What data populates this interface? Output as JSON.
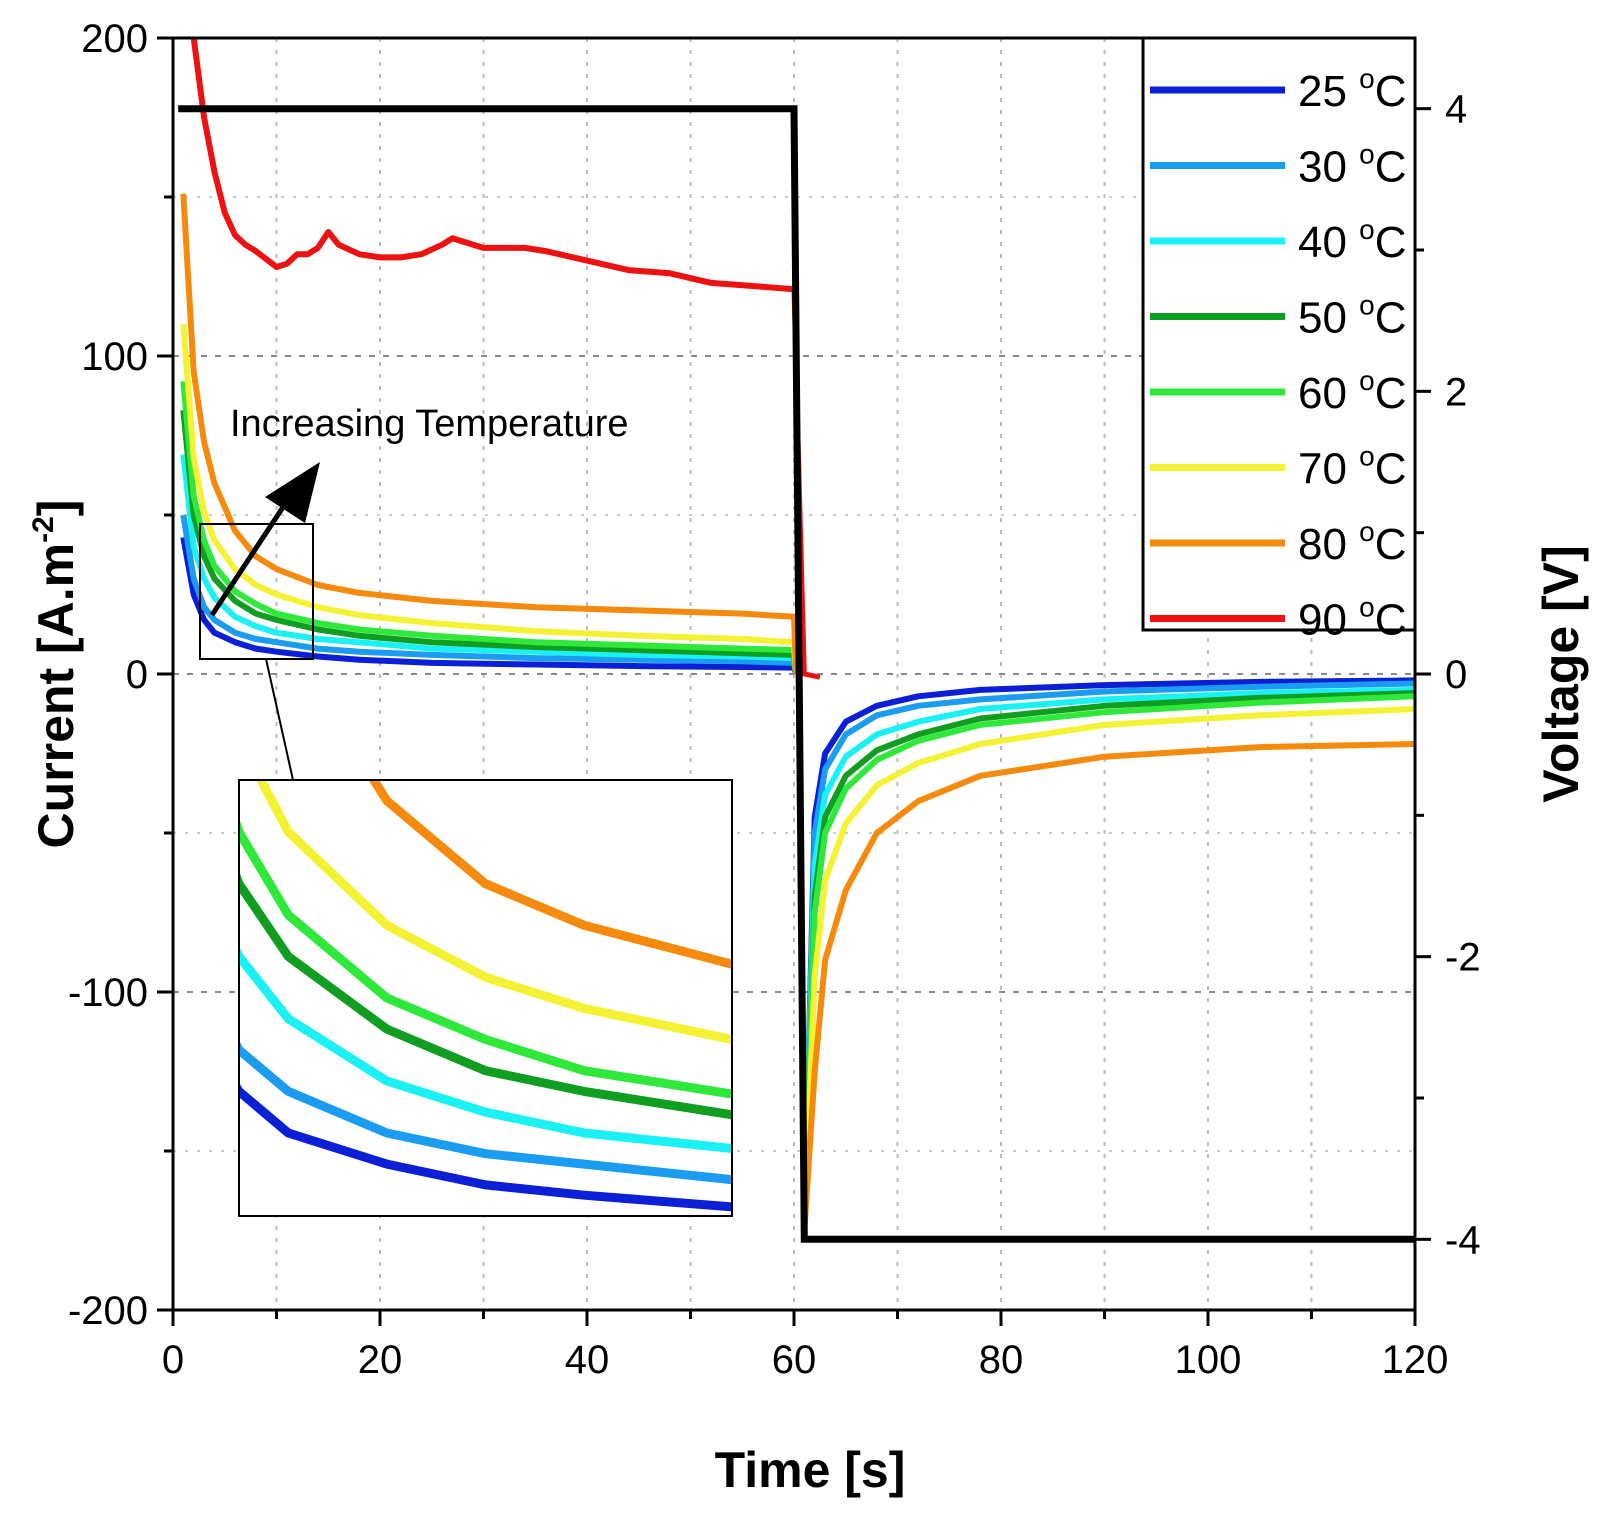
{
  "chart_data": {
    "type": "line",
    "title": "",
    "xlabel": "Time [s]",
    "ylabel": "Current [A.m",
    "ylabel_sup": "-2",
    "ylabel_close": "]",
    "y2label": "Voltage [V]",
    "xlim": [
      0,
      120
    ],
    "ylim": [
      -200,
      200
    ],
    "y2lim": [
      -4.5,
      4.5
    ],
    "x_ticks": [
      "0",
      "20",
      "40",
      "60",
      "80",
      "100",
      "120"
    ],
    "y_ticks": [
      "200",
      "100",
      "0",
      "-100",
      "-200"
    ],
    "y2_ticks": [
      "4",
      "2",
      "0",
      "-2",
      "-4"
    ],
    "grid": true,
    "legend_position": "top-right",
    "annotation": "Increasing Temperature",
    "series": [
      {
        "name": "25 °C",
        "label": "25",
        "unit": "C",
        "deg": "o",
        "color": "#0a1fd6",
        "x": [
          1,
          2,
          3,
          4,
          6,
          8,
          10,
          14,
          18,
          25,
          35,
          45,
          55,
          60
        ],
        "y": [
          43,
          25,
          17,
          13,
          10,
          8,
          7,
          5.5,
          4.5,
          3.5,
          3,
          2.5,
          2.2,
          2
        ]
      },
      {
        "name": "30 °C",
        "label": "30",
        "unit": "C",
        "deg": "o",
        "color": "#1a9cf0",
        "x": [
          1,
          2,
          3,
          4,
          6,
          8,
          10,
          14,
          18,
          25,
          35,
          45,
          55,
          60
        ],
        "y": [
          50,
          30,
          21,
          17,
          13,
          11,
          10,
          8,
          7,
          6,
          5,
          4.5,
          4,
          3.5
        ]
      },
      {
        "name": "40 °C",
        "label": "40",
        "unit": "C",
        "deg": "o",
        "color": "#19f1f5",
        "x": [
          1,
          2,
          3,
          4,
          6,
          8,
          10,
          14,
          18,
          25,
          35,
          45,
          55,
          60
        ],
        "y": [
          69,
          40,
          30,
          24,
          18,
          15,
          13,
          11,
          10,
          8,
          7,
          6,
          5.5,
          5
        ]
      },
      {
        "name": "50 °C",
        "label": "50",
        "unit": "C",
        "deg": "o",
        "color": "#0f9e1f",
        "x": [
          1,
          2,
          3,
          4,
          6,
          8,
          10,
          14,
          18,
          25,
          35,
          45,
          55,
          60
        ],
        "y": [
          83,
          50,
          37,
          30,
          23,
          19,
          17,
          14,
          12,
          10,
          8.5,
          7.5,
          6.5,
          6
        ]
      },
      {
        "name": "60 °C",
        "label": "60",
        "unit": "C",
        "deg": "o",
        "color": "#2ee83a",
        "x": [
          1,
          2,
          3,
          4,
          6,
          8,
          10,
          14,
          18,
          25,
          35,
          45,
          55,
          60
        ],
        "y": [
          92,
          56,
          42,
          34,
          26,
          22,
          19,
          16,
          14,
          12,
          10,
          9,
          8,
          7.5
        ]
      },
      {
        "name": "70 °C",
        "label": "70",
        "unit": "C",
        "deg": "o",
        "color": "#f4f233",
        "x": [
          1,
          2,
          3,
          4,
          6,
          8,
          10,
          14,
          18,
          25,
          35,
          45,
          55,
          60
        ],
        "y": [
          110,
          68,
          51,
          42,
          33,
          28,
          25,
          21,
          18.5,
          16,
          13.5,
          12,
          11,
          10
        ]
      },
      {
        "name": "80 °C",
        "label": "80",
        "unit": "C",
        "deg": "o",
        "color": "#f58a0c",
        "x": [
          1,
          2,
          3,
          4,
          6,
          8,
          10,
          14,
          18,
          25,
          35,
          45,
          55,
          60
        ],
        "y": [
          151,
          95,
          73,
          60,
          45,
          37,
          33,
          28,
          25.5,
          23,
          21,
          20,
          19,
          18
        ]
      },
      {
        "name": "90 °C",
        "label": "90",
        "unit": "C",
        "deg": "o",
        "color": "#ee1111",
        "x": [
          2,
          3,
          4,
          5,
          6,
          7,
          8,
          10,
          11,
          12,
          13,
          14,
          15,
          16,
          18,
          20,
          22,
          24,
          26,
          27,
          28,
          30,
          34,
          36,
          40,
          44,
          48,
          52,
          56,
          60
        ],
        "y": [
          200,
          175,
          158,
          145,
          138,
          135,
          133,
          128,
          129,
          132,
          132,
          134,
          139,
          135,
          132,
          131,
          131,
          132,
          135,
          137,
          136,
          134,
          134,
          133,
          130,
          127,
          126,
          123,
          122,
          121
        ]
      }
    ],
    "discharge_series": [
      {
        "name": "25 °C",
        "color": "#0a1fd6",
        "x": [
          61,
          62,
          63,
          65,
          68,
          72,
          78,
          90,
          105,
          120
        ],
        "y": [
          -175,
          -45,
          -25,
          -15,
          -10,
          -7,
          -5,
          -3.5,
          -2.5,
          -2
        ]
      },
      {
        "name": "30 °C",
        "color": "#1a9cf0",
        "x": [
          61,
          62,
          63,
          65,
          68,
          72,
          78,
          90,
          105,
          120
        ],
        "y": [
          -175,
          -50,
          -30,
          -19,
          -13,
          -10,
          -8,
          -5.5,
          -4,
          -3
        ]
      },
      {
        "name": "40 °C",
        "color": "#19f1f5",
        "x": [
          61,
          62,
          63,
          65,
          68,
          72,
          78,
          90,
          105,
          120
        ],
        "y": [
          -175,
          -60,
          -38,
          -26,
          -19,
          -15,
          -11,
          -8,
          -6,
          -5
        ]
      },
      {
        "name": "50 °C",
        "color": "#0f9e1f",
        "x": [
          61,
          62,
          63,
          65,
          68,
          72,
          78,
          90,
          105,
          120
        ],
        "y": [
          -175,
          -70,
          -45,
          -32,
          -24,
          -19,
          -14,
          -10,
          -7.5,
          -6
        ]
      },
      {
        "name": "60 °C",
        "color": "#2ee83a",
        "x": [
          61,
          62,
          63,
          65,
          68,
          72,
          78,
          90,
          105,
          120
        ],
        "y": [
          -175,
          -75,
          -50,
          -36,
          -27,
          -21,
          -16,
          -12,
          -9,
          -7
        ]
      },
      {
        "name": "70 °C",
        "color": "#f4f233",
        "x": [
          61,
          62,
          63,
          65,
          68,
          72,
          78,
          90,
          105,
          120
        ],
        "y": [
          -175,
          -95,
          -65,
          -47,
          -35,
          -28,
          -22,
          -16,
          -13,
          -11
        ]
      },
      {
        "name": "80 °C",
        "color": "#f58a0c",
        "x": [
          61,
          62,
          63,
          65,
          68,
          72,
          78,
          90,
          105,
          120
        ],
        "y": [
          -175,
          -125,
          -90,
          -68,
          -50,
          -40,
          -32,
          -26,
          -23,
          -22
        ]
      }
    ],
    "voltage": {
      "name": "Voltage",
      "color": "#000000",
      "x": [
        0.5,
        60,
        61,
        120
      ],
      "y": [
        4,
        4,
        -4,
        -4
      ]
    },
    "red_tail": {
      "x": [
        60,
        61,
        62.5
      ],
      "y": [
        121,
        0,
        -1
      ]
    }
  }
}
